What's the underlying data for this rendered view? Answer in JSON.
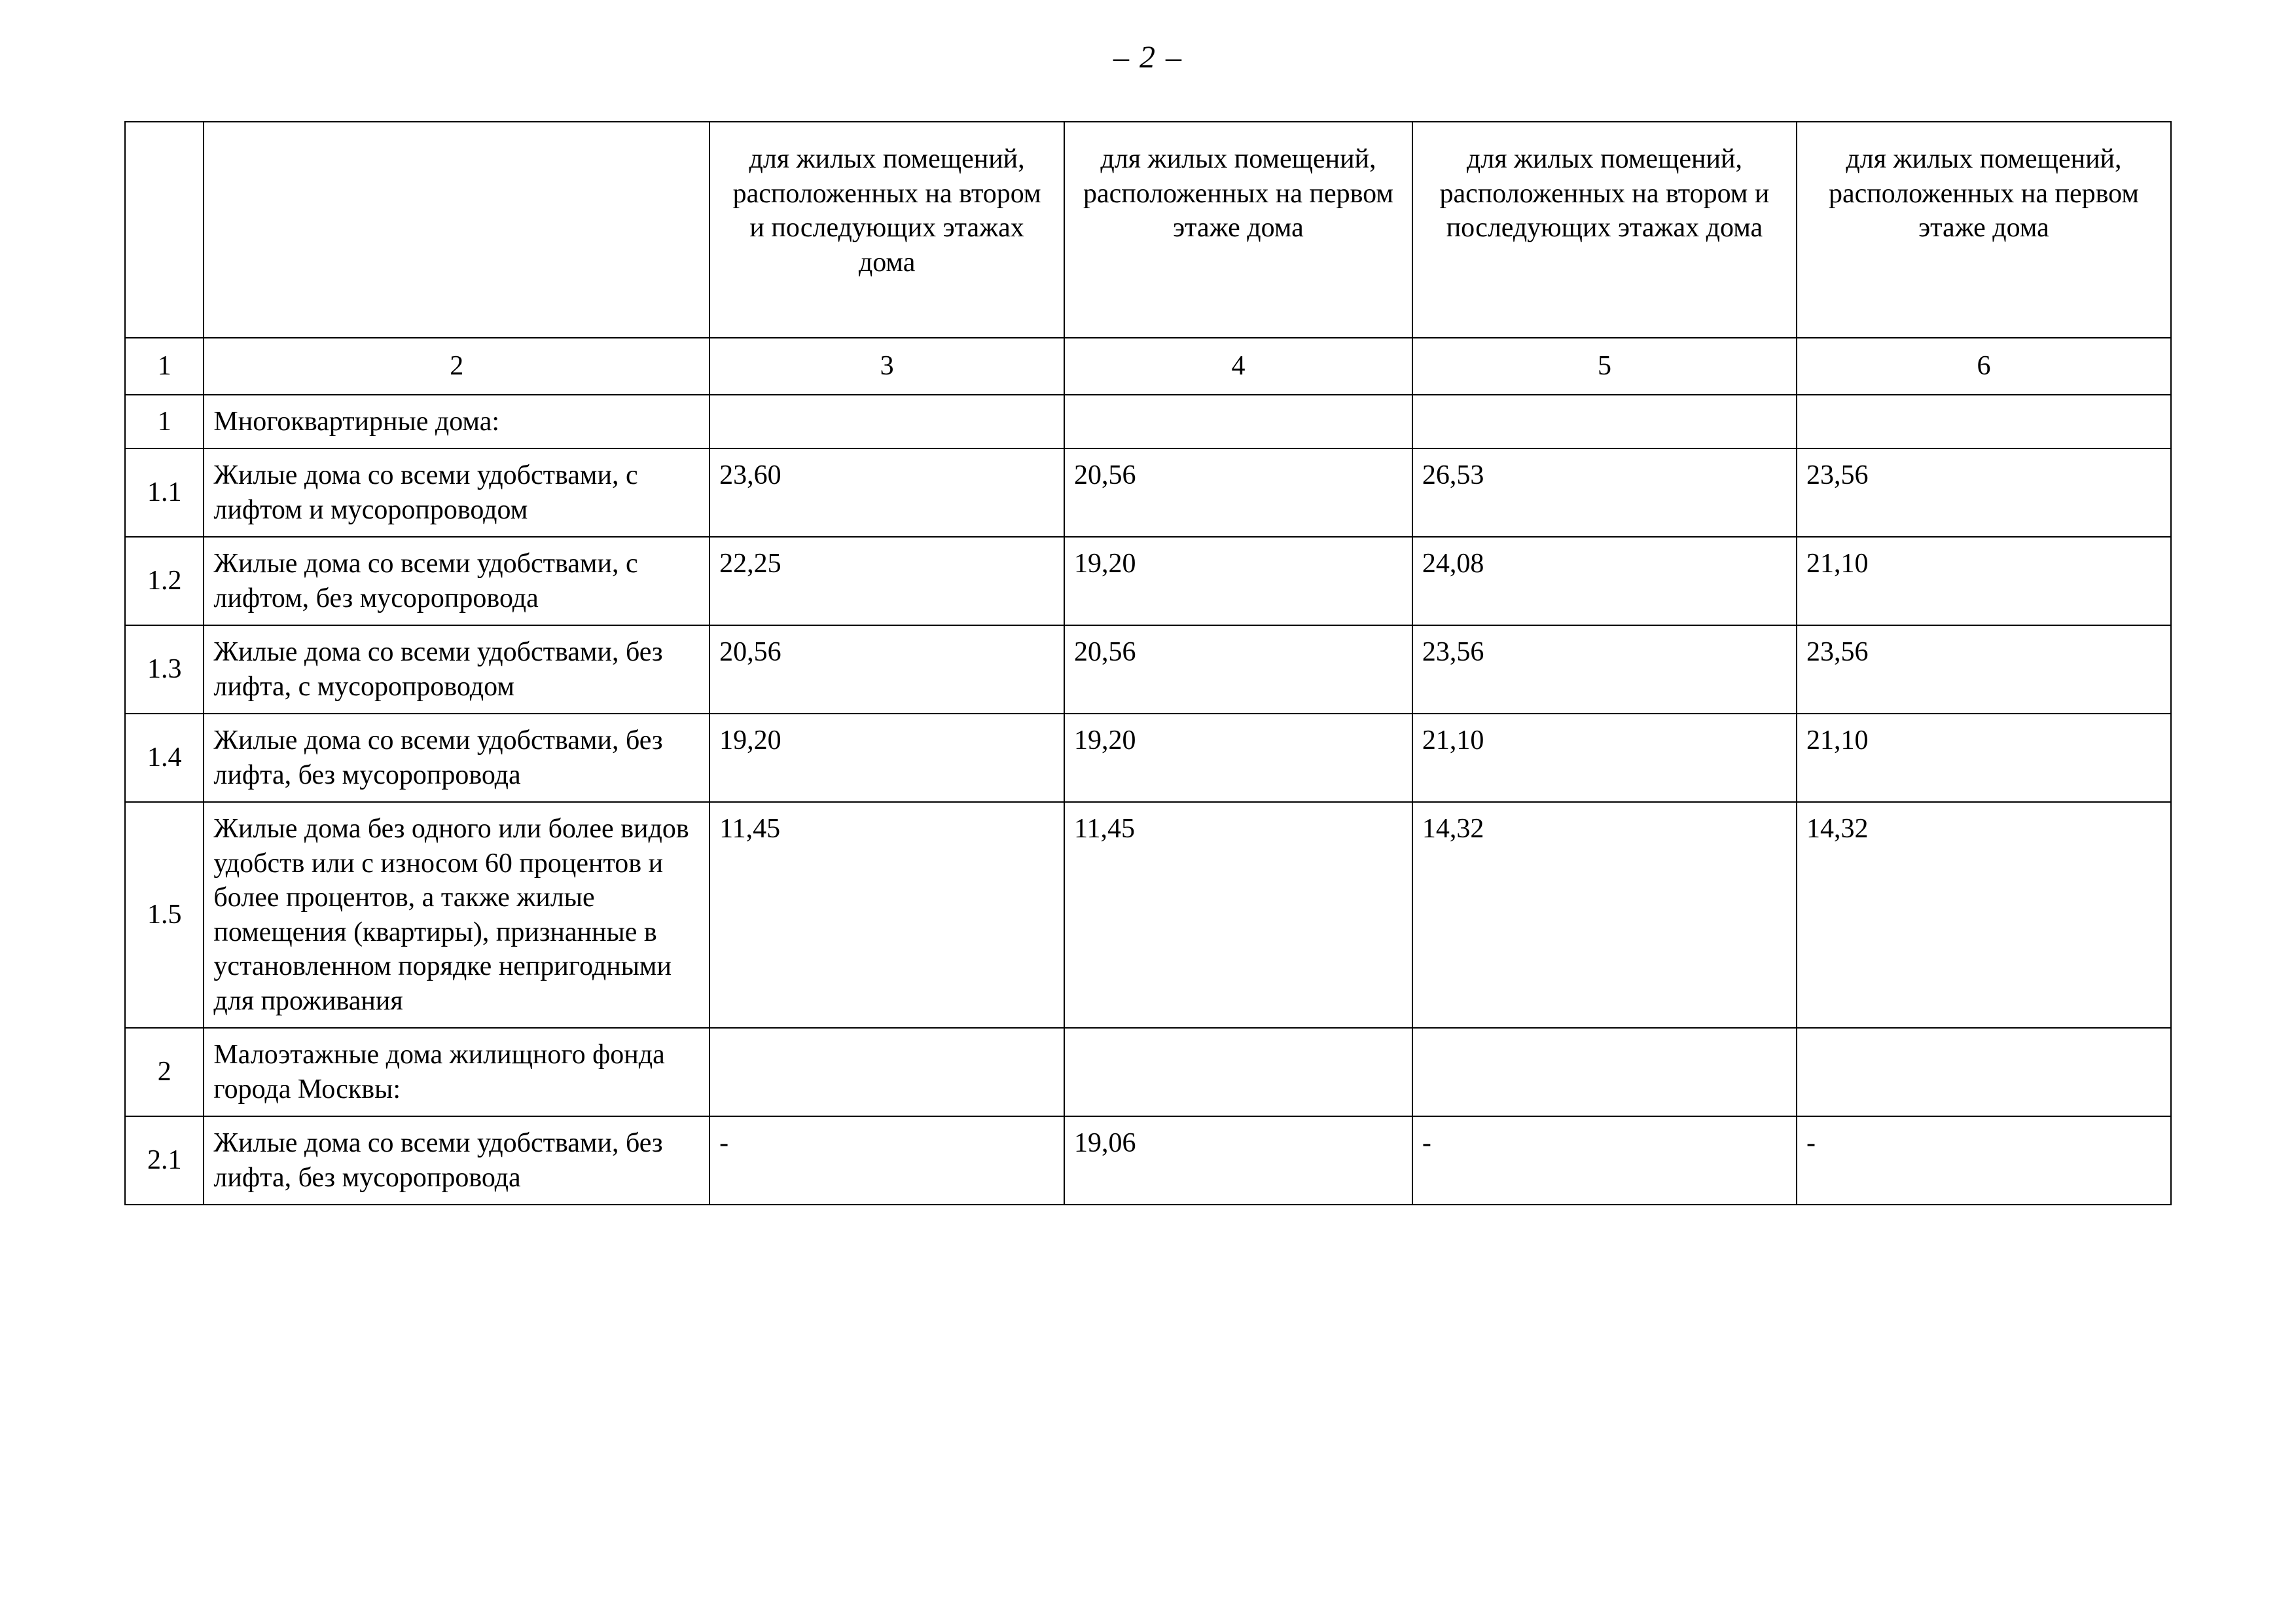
{
  "page_number_label": "– 2 –",
  "colors": {
    "text": "#000000",
    "border": "#000000",
    "background": "#ffffff"
  },
  "table": {
    "headers": {
      "c1": "",
      "c2": "",
      "c3": "для жилых помещений, расположенных на втором и последующих этажах дома",
      "c4": "для жилых помещений, расположенных на первом этаже дома",
      "c5": "для жилых помещений, расположенных на втором и последующих этажах дома",
      "c6": "для жилых помещений, расположенных на первом этаже дома"
    },
    "column_numbers": {
      "c1": "1",
      "c2": "2",
      "c3": "3",
      "c4": "4",
      "c5": "5",
      "c6": "6"
    },
    "rows": [
      {
        "idx": "1",
        "desc": "Многоквартирные дома:",
        "v3": "",
        "v4": "",
        "v5": "",
        "v6": ""
      },
      {
        "idx": "1.1",
        "desc": "Жилые дома со всеми удобствами, с лифтом и мусоропроводом",
        "v3": "23,60",
        "v4": "20,56",
        "v5": "26,53",
        "v6": "23,56"
      },
      {
        "idx": "1.2",
        "desc": "Жилые дома со всеми удобствами, с лифтом, без мусоропровода",
        "v3": "22,25",
        "v4": "19,20",
        "v5": "24,08",
        "v6": "21,10"
      },
      {
        "idx": "1.3",
        "desc": "Жилые дома со всеми удобствами, без лифта, с мусоропроводом",
        "v3": "20,56",
        "v4": "20,56",
        "v5": "23,56",
        "v6": "23,56"
      },
      {
        "idx": "1.4",
        "desc": "Жилые дома со всеми удобствами, без лифта, без мусоропровода",
        "v3": "19,20",
        "v4": "19,20",
        "v5": "21,10",
        "v6": "21,10"
      },
      {
        "idx": "1.5",
        "desc": "Жилые дома без одного или более видов удобств или с износом 60 процентов и более процентов, а также жилые помещения (квартиры), признанные в установленном порядке непригодными для проживания",
        "v3": "11,45",
        "v4": "11,45",
        "v5": "14,32",
        "v6": "14,32"
      },
      {
        "idx": "2",
        "desc": "Малоэтажные дома жилищного фонда города Москвы:",
        "v3": "",
        "v4": "",
        "v5": "",
        "v6": ""
      },
      {
        "idx": "2.1",
        "desc": "Жилые дома со всеми удобствами, без лифта, без мусоропровода",
        "v3": "-",
        "v4": "19,06",
        "v5": "-",
        "v6": "-"
      }
    ]
  }
}
